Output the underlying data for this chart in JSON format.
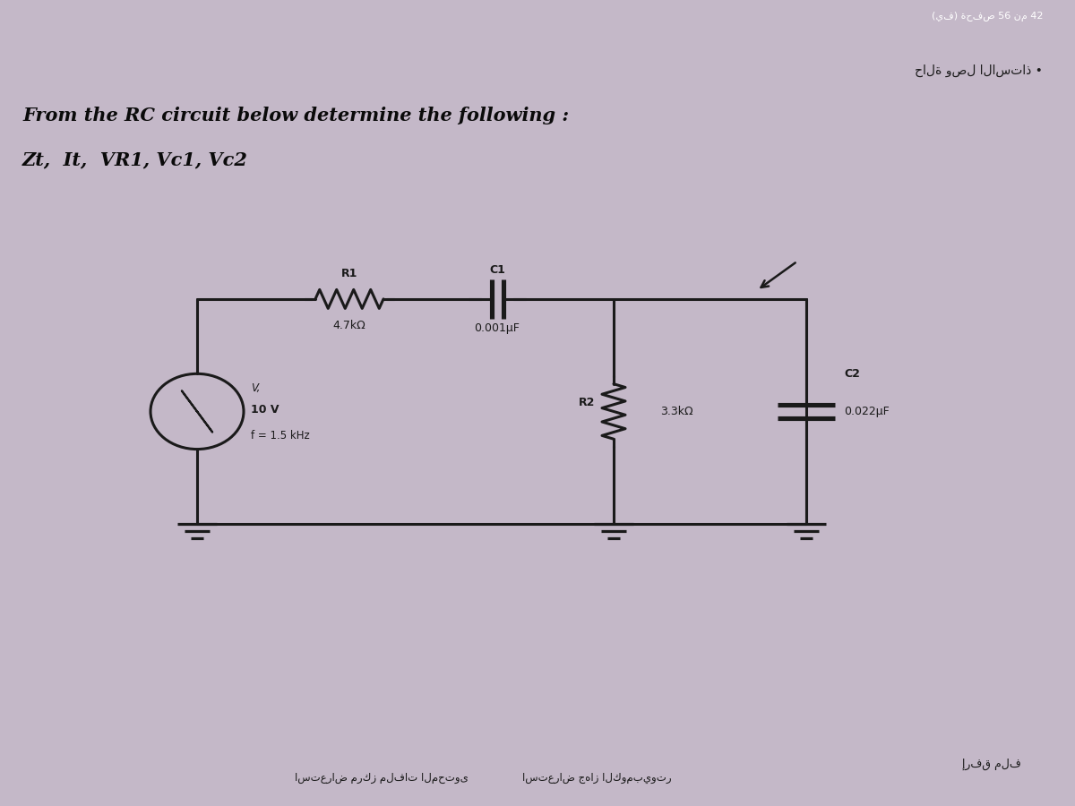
{
  "title_line1": "From the RC circuit below determine the following :",
  "title_line2": "Zt,  It,  VR1, Vc1, Vc2",
  "bg_top_color": "#1a1520",
  "bg_main_color": "#c4b8c8",
  "bg_strip_color": "#b8aac0",
  "source_label1": "V,",
  "source_label2": "10 V",
  "source_label3": "f = 1.5 kHz",
  "R1_label": "R1",
  "R1_value": "4.7kΩ",
  "C1_label": "C1",
  "C1_value": "0.001μF",
  "R2_label": "R2",
  "R2_value": "3.3kΩ",
  "C2_label": "C2",
  "C2_value": "0.022μF",
  "footer_text1": "استعراض مركز ملفات المحتوى",
  "footer_text2": "استعراض جهاز الكومبيوتر",
  "footer_text3": "إرفق ملف",
  "top_arabic": "حالة وصل الاستاذ •",
  "top_bar_text": "(يف) ةحفص 56 نم 42"
}
